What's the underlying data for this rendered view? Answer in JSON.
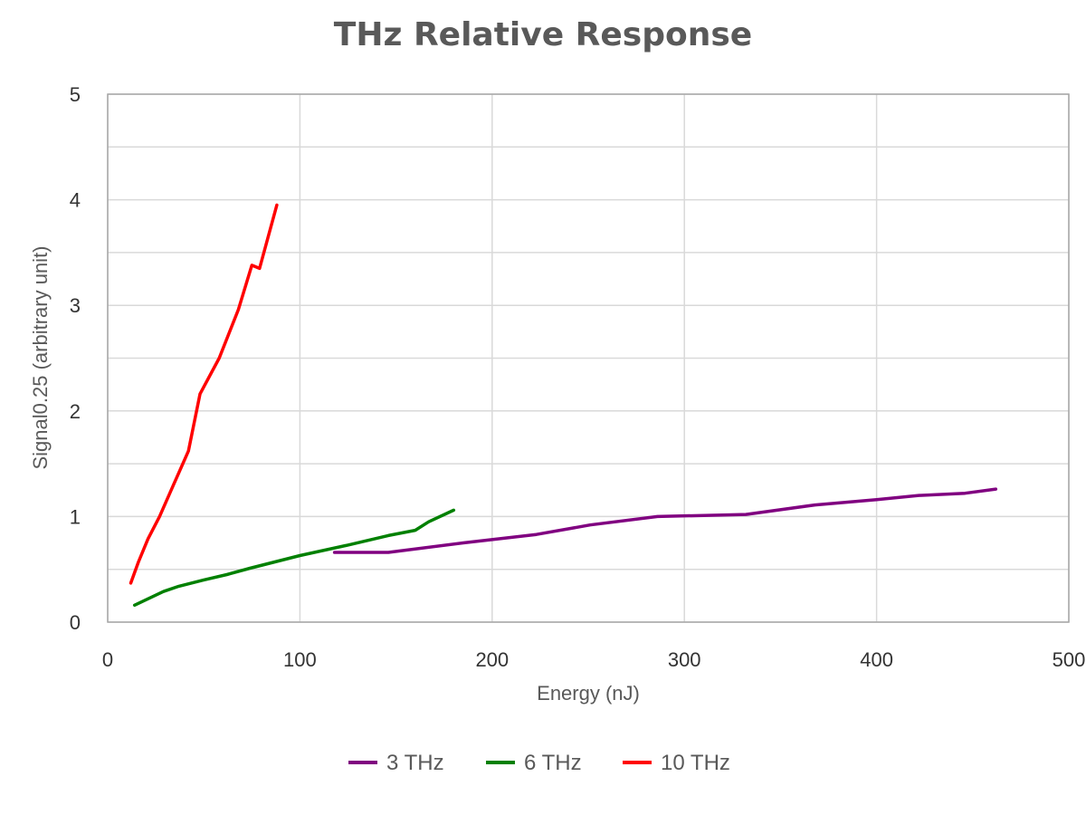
{
  "chart_data": {
    "type": "line",
    "title": "THz Relative Response",
    "xlabel": "Energy (nJ)",
    "ylabel": "Signal0.25 (arbitrary unit)",
    "xlim": [
      0,
      500
    ],
    "ylim": [
      0,
      5
    ],
    "x_ticks": [
      "0",
      "100",
      "200",
      "300",
      "400",
      "500"
    ],
    "y_ticks": [
      "0",
      "1",
      "2",
      "3",
      "4",
      "5"
    ],
    "grid": true,
    "legend_position": "bottom",
    "series": [
      {
        "name": "3 THz",
        "color": "#800080",
        "x": [
          118,
          146,
          185,
          223,
          251,
          286,
          332,
          368,
          400,
          422,
          446,
          462
        ],
        "y": [
          0.66,
          0.66,
          0.75,
          0.83,
          0.92,
          1.0,
          1.02,
          1.11,
          1.16,
          1.2,
          1.22,
          1.26
        ]
      },
      {
        "name": "6 THz",
        "color": "#008000",
        "x": [
          14,
          29,
          37,
          50,
          62,
          74,
          100,
          125,
          146,
          160,
          167,
          180
        ],
        "y": [
          0.16,
          0.29,
          0.34,
          0.4,
          0.45,
          0.51,
          0.63,
          0.73,
          0.82,
          0.87,
          0.95,
          1.06
        ]
      },
      {
        "name": "10 THz",
        "color": "#ff0000",
        "x": [
          12,
          16,
          21,
          27,
          34,
          42,
          48,
          58,
          68,
          75,
          79,
          88
        ],
        "y": [
          0.37,
          0.57,
          0.79,
          1.0,
          1.29,
          1.62,
          2.16,
          2.5,
          2.96,
          3.38,
          3.35,
          3.95
        ]
      }
    ]
  }
}
